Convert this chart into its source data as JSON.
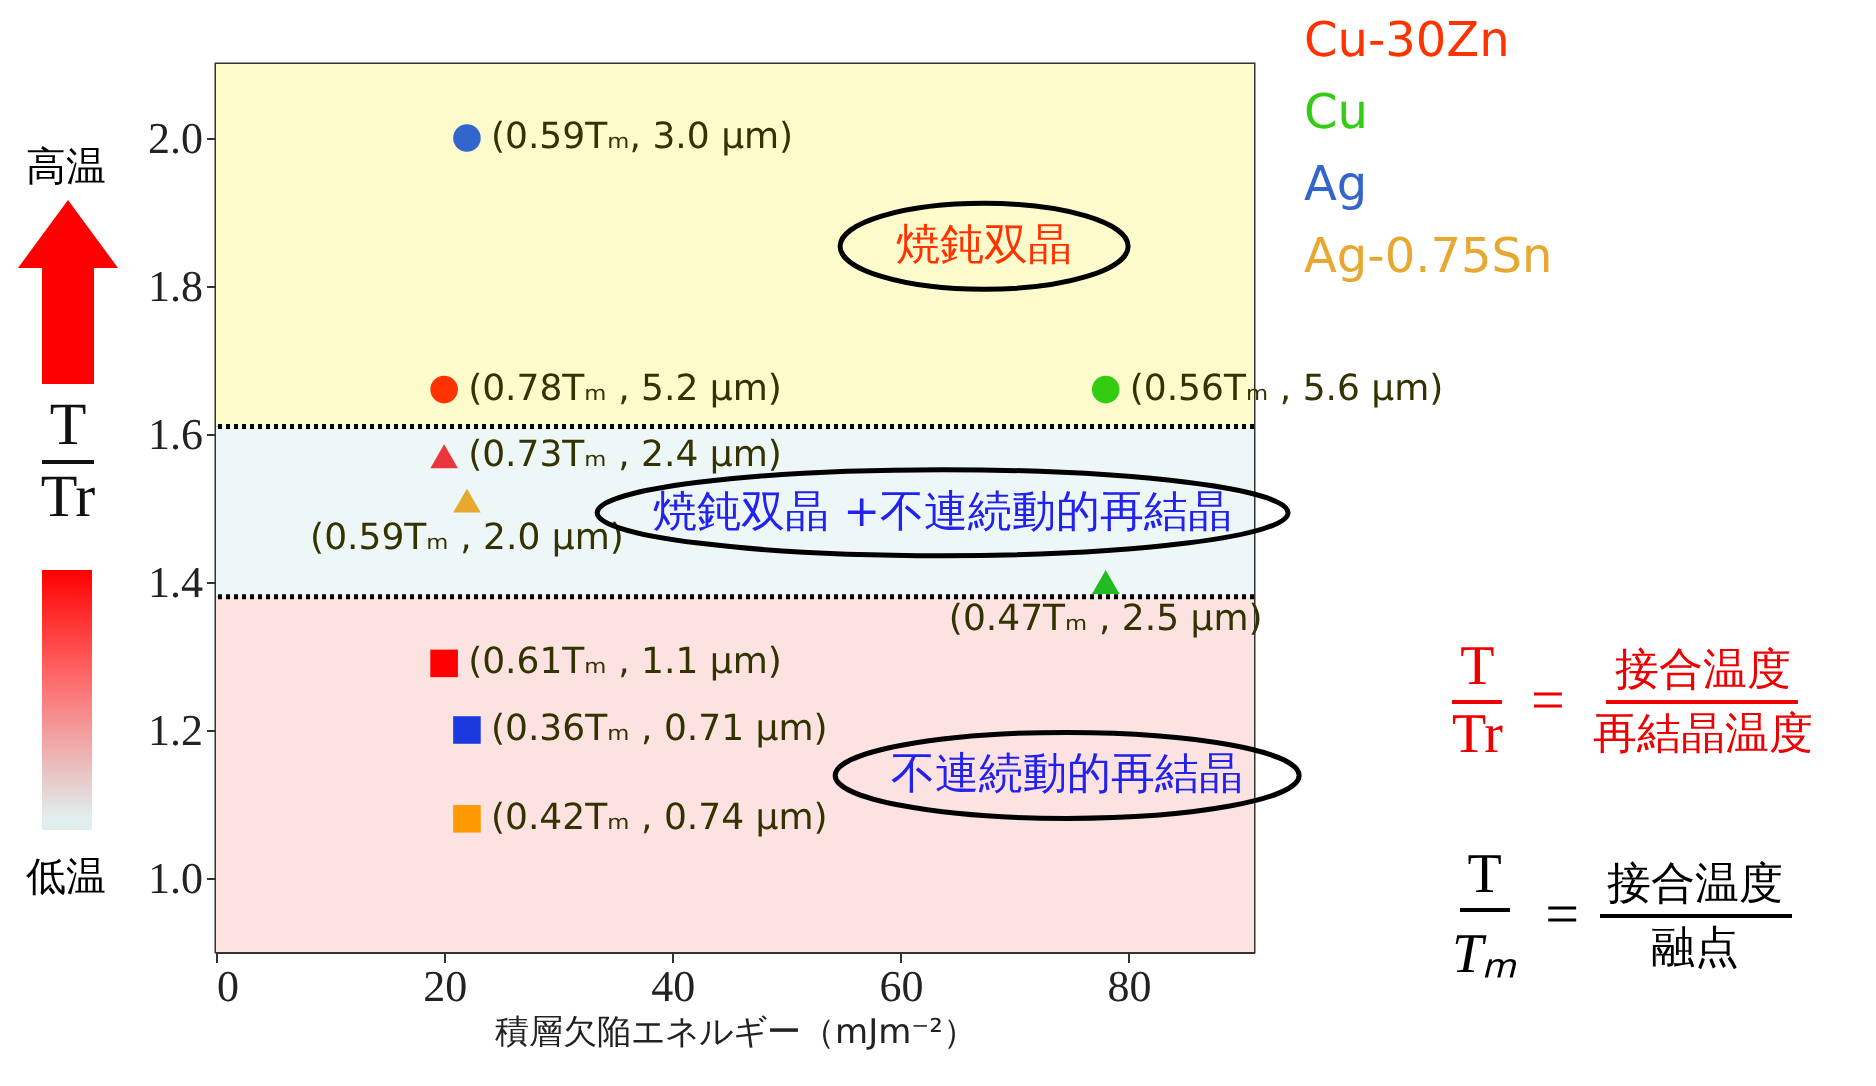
{
  "chart_data": {
    "type": "scatter",
    "xlabel": "積層欠陥エネルギー（mJm⁻²）",
    "xlim": [
      0,
      91
    ],
    "xticks": [
      0,
      20,
      40,
      60,
      80
    ],
    "ylim": [
      0.9,
      2.1
    ],
    "yticks": [
      {
        "value": 1,
        "label": "1.0"
      },
      1.2,
      1.4,
      1.6,
      1.8,
      {
        "value": 2,
        "label": "2.0"
      }
    ],
    "series": [
      {
        "name": "Cu-30Zn",
        "color": "#ff3300",
        "marker": "circle",
        "x": [
          20
        ],
        "values": [
          1.66
        ],
        "value_labels": [
          "(0.78Tₘ , 5.2 μm)"
        ]
      },
      {
        "color": "#e8383d",
        "marker": "triangle",
        "x": [
          20
        ],
        "values": [
          1.57
        ],
        "value_labels": [
          "(0.73Tₘ , 2.4 μm)"
        ]
      },
      {
        "color": "#ff0000",
        "marker": "square",
        "x": [
          20
        ],
        "values": [
          1.29
        ],
        "value_labels": [
          "(0.61Tₘ , 1.1 μm)"
        ]
      },
      {
        "name": "Cu",
        "color": "#33cc11",
        "marker": "circle",
        "x": [
          78
        ],
        "values": [
          1.66
        ],
        "value_labels": [
          "(0.56Tₘ , 5.6 μm)"
        ]
      },
      {
        "color": "#22bb22",
        "marker": "triangle",
        "x": [
          78
        ],
        "values": [
          1.4
        ],
        "value_labels": [
          "(0.47Tₘ , 2.5 μm)"
        ]
      },
      {
        "name": "Ag",
        "color": "#3366cc",
        "marker": "circle",
        "x": [
          22
        ],
        "values": [
          2.0
        ],
        "value_labels": [
          "(0.59Tₘ, 3.0 μm)"
        ]
      },
      {
        "color": "#1a3ae0",
        "marker": "square",
        "x": [
          22
        ],
        "values": [
          1.2
        ],
        "value_labels": [
          "(0.36Tₘ , 0.71 μm)"
        ]
      },
      {
        "name": "Ag-0.75Sn",
        "color": "#e8a830",
        "marker": "triangle",
        "x": [
          22
        ],
        "values": [
          1.51
        ],
        "value_labels": [
          "(0.59Tₘ , 2.0 μm)"
        ]
      },
      {
        "color": "#ff9900",
        "marker": "square",
        "x": [
          22
        ],
        "values": [
          1.08
        ],
        "value_labels": [
          "(0.42Tₘ , 0.74 μm)"
        ]
      }
    ],
    "bands": [
      {
        "axis": "y",
        "from": 1.61,
        "to": 2.1,
        "label": "焼鈍双晶",
        "color": "#fdfbcc"
      },
      {
        "axis": "y",
        "from": 1.38,
        "to": 1.61,
        "label": "焼鈍双晶 +不連続動的再結晶",
        "color": "#eef7f7"
      },
      {
        "axis": "y",
        "from": 0.9,
        "to": 1.38,
        "label": "不連続動的再結晶",
        "color": "#fde2e2"
      }
    ],
    "ref_lines": [
      {
        "axis": "y",
        "value": 1.61,
        "color": "#000000",
        "line_style": "dotted"
      },
      {
        "axis": "y",
        "value": 1.38,
        "color": "#000000",
        "line_style": "dotted"
      }
    ],
    "annotations": [
      "高温",
      "低温",
      "T",
      "Tr",
      "T",
      "Tr",
      "=",
      "接合温度",
      "再結晶温度",
      "T",
      "Tₘ",
      "=",
      "接合温度",
      "融点"
    ],
    "legend": "top right",
    "grid": false
  }
}
